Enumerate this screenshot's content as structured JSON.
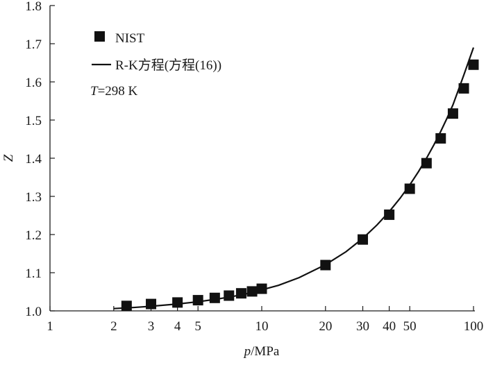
{
  "chart_data": {
    "type": "scatter",
    "x_scale": "log",
    "xlim": [
      1,
      100
    ],
    "ylim": [
      1.0,
      1.8
    ],
    "x_ticks": [
      1,
      2,
      3,
      4,
      5,
      10,
      20,
      30,
      40,
      50,
      100
    ],
    "x_tick_labels": [
      "1",
      "2",
      "3",
      "4",
      "5",
      "10",
      "20",
      "30",
      "40",
      "50",
      "100"
    ],
    "y_ticks": [
      1.0,
      1.1,
      1.2,
      1.3,
      1.4,
      1.5,
      1.6,
      1.7,
      1.8
    ],
    "y_tick_labels": [
      "1.0",
      "1.1",
      "1.2",
      "1.3",
      "1.4",
      "1.5",
      "1.6",
      "1.7",
      "1.8"
    ],
    "xlabel_italic": "p",
    "xlabel_rest": "/MPa",
    "ylabel": "Z",
    "grid": false,
    "legend_position": "top-left",
    "annotation_italic": "T",
    "annotation_rest": "=298 K",
    "series": [
      {
        "name": "NIST",
        "kind": "markers",
        "color": "#111111",
        "x": [
          2.3,
          3.0,
          4.0,
          5.0,
          6.0,
          7.0,
          8.0,
          9.0,
          10.0,
          20.0,
          30.0,
          40.0,
          50.0,
          60.0,
          70.0,
          80.0,
          90.0,
          100.0
        ],
        "y": [
          1.013,
          1.018,
          1.022,
          1.028,
          1.034,
          1.04,
          1.046,
          1.051,
          1.058,
          1.12,
          1.187,
          1.252,
          1.32,
          1.387,
          1.452,
          1.517,
          1.583,
          1.645
        ]
      },
      {
        "name": "R-K方程(方程(16))",
        "kind": "line",
        "color": "#111111",
        "x": [
          2.0,
          2.5,
          3.0,
          4.0,
          5.0,
          6.0,
          7.0,
          8.0,
          9.0,
          10.0,
          12.0,
          15.0,
          20.0,
          25.0,
          30.0,
          35.0,
          40.0,
          45.0,
          50.0,
          55.0,
          60.0,
          65.0,
          70.0,
          75.0,
          80.0,
          85.0,
          90.0,
          95.0,
          100.0
        ],
        "y": [
          1.006,
          1.009,
          1.012,
          1.018,
          1.024,
          1.03,
          1.036,
          1.042,
          1.048,
          1.055,
          1.067,
          1.087,
          1.121,
          1.155,
          1.19,
          1.225,
          1.26,
          1.295,
          1.33,
          1.365,
          1.4,
          1.435,
          1.47,
          1.505,
          1.54,
          1.58,
          1.618,
          1.655,
          1.69
        ]
      }
    ]
  }
}
